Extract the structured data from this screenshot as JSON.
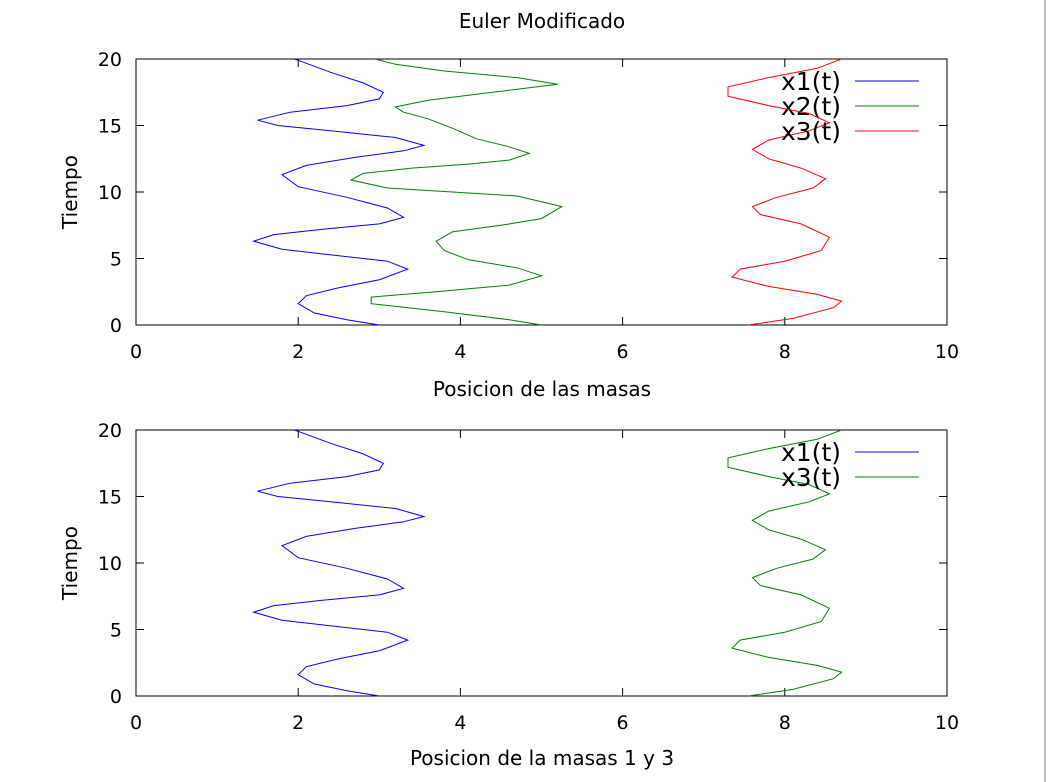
{
  "chart_data": [
    {
      "type": "line",
      "title": "Euler Modificado",
      "xlabel": "Posicion de las masas",
      "ylabel": "Tiempo",
      "xlim": [
        0,
        10
      ],
      "ylim": [
        0,
        20
      ],
      "xticks": [
        "0",
        "2",
        "4",
        "6",
        "8",
        "10"
      ],
      "yticks": [
        "0",
        "5",
        "10",
        "15",
        "20"
      ],
      "legend_position": "top-right",
      "series": [
        {
          "name": "x1(t)",
          "color": "#0000ff",
          "points": [
            [
              3.0,
              0
            ],
            [
              2.6,
              0.4
            ],
            [
              2.2,
              0.9
            ],
            [
              2.0,
              1.6
            ],
            [
              2.1,
              2.2
            ],
            [
              2.5,
              2.8
            ],
            [
              3.0,
              3.4
            ],
            [
              3.35,
              4.2
            ],
            [
              3.1,
              4.8
            ],
            [
              2.5,
              5.2
            ],
            [
              1.8,
              5.7
            ],
            [
              1.45,
              6.3
            ],
            [
              1.7,
              6.8
            ],
            [
              2.3,
              7.2
            ],
            [
              3.0,
              7.6
            ],
            [
              3.3,
              8.1
            ],
            [
              3.1,
              8.8
            ],
            [
              2.6,
              9.6
            ],
            [
              2.0,
              10.4
            ],
            [
              1.8,
              11.3
            ],
            [
              2.1,
              12.0
            ],
            [
              2.7,
              12.6
            ],
            [
              3.3,
              13.1
            ],
            [
              3.55,
              13.5
            ],
            [
              3.2,
              14.1
            ],
            [
              2.4,
              14.6
            ],
            [
              1.75,
              15.0
            ],
            [
              1.5,
              15.4
            ],
            [
              1.9,
              16.0
            ],
            [
              2.6,
              16.5
            ],
            [
              3.0,
              17.0
            ],
            [
              3.05,
              17.5
            ],
            [
              2.8,
              18.2
            ],
            [
              2.4,
              19.0
            ],
            [
              2.0,
              19.9
            ],
            [
              1.95,
              20
            ]
          ]
        },
        {
          "name": "x2(t)",
          "color": "#008000",
          "points": [
            [
              5.0,
              0
            ],
            [
              4.6,
              0.4
            ],
            [
              3.8,
              1.0
            ],
            [
              2.9,
              1.6
            ],
            [
              2.9,
              2.1
            ],
            [
              3.7,
              2.5
            ],
            [
              4.6,
              3.0
            ],
            [
              5.0,
              3.7
            ],
            [
              4.7,
              4.3
            ],
            [
              4.1,
              4.9
            ],
            [
              3.8,
              5.6
            ],
            [
              3.7,
              6.3
            ],
            [
              3.9,
              7.0
            ],
            [
              4.5,
              7.5
            ],
            [
              5.0,
              8.0
            ],
            [
              5.25,
              8.9
            ],
            [
              4.7,
              9.7
            ],
            [
              3.9,
              10.0
            ],
            [
              3.1,
              10.3
            ],
            [
              2.65,
              10.9
            ],
            [
              2.8,
              11.4
            ],
            [
              3.4,
              11.8
            ],
            [
              4.1,
              12.1
            ],
            [
              4.6,
              12.4
            ],
            [
              4.85,
              12.9
            ],
            [
              4.6,
              13.4
            ],
            [
              4.2,
              14.0
            ],
            [
              3.9,
              14.8
            ],
            [
              3.6,
              15.5
            ],
            [
              3.3,
              16.0
            ],
            [
              3.2,
              16.4
            ],
            [
              3.6,
              16.9
            ],
            [
              4.4,
              17.5
            ],
            [
              5.2,
              18.1
            ],
            [
              4.7,
              18.6
            ],
            [
              3.8,
              19.1
            ],
            [
              3.2,
              19.6
            ],
            [
              2.95,
              20
            ]
          ]
        },
        {
          "name": "x3(t)",
          "color": "#ff0000",
          "points": [
            [
              7.55,
              0
            ],
            [
              8.1,
              0.5
            ],
            [
              8.6,
              1.3
            ],
            [
              8.7,
              1.8
            ],
            [
              8.4,
              2.3
            ],
            [
              7.8,
              2.9
            ],
            [
              7.35,
              3.6
            ],
            [
              7.45,
              4.2
            ],
            [
              8.0,
              4.8
            ],
            [
              8.45,
              5.6
            ],
            [
              8.55,
              6.6
            ],
            [
              8.2,
              7.6
            ],
            [
              7.7,
              8.3
            ],
            [
              7.6,
              8.9
            ],
            [
              7.9,
              9.6
            ],
            [
              8.35,
              10.3
            ],
            [
              8.5,
              11.0
            ],
            [
              8.2,
              11.8
            ],
            [
              7.8,
              12.5
            ],
            [
              7.6,
              13.2
            ],
            [
              7.8,
              13.9
            ],
            [
              8.3,
              14.6
            ],
            [
              8.55,
              15.2
            ],
            [
              8.3,
              15.9
            ],
            [
              7.8,
              16.5
            ],
            [
              7.3,
              17.2
            ],
            [
              7.3,
              17.9
            ],
            [
              7.8,
              18.6
            ],
            [
              8.4,
              19.3
            ],
            [
              8.7,
              20
            ]
          ]
        }
      ]
    },
    {
      "type": "line",
      "title": "",
      "xlabel": "Posicion de la masas 1 y 3",
      "ylabel": "Tiempo",
      "xlim": [
        0,
        10
      ],
      "ylim": [
        0,
        20
      ],
      "xticks": [
        "0",
        "2",
        "4",
        "6",
        "8",
        "10"
      ],
      "yticks": [
        "0",
        "5",
        "10",
        "15",
        "20"
      ],
      "legend_position": "top-right",
      "series": [
        {
          "name": "x1(t)",
          "color": "#0000ff",
          "points": [
            [
              3.0,
              0
            ],
            [
              2.6,
              0.4
            ],
            [
              2.2,
              0.9
            ],
            [
              2.0,
              1.6
            ],
            [
              2.1,
              2.2
            ],
            [
              2.5,
              2.8
            ],
            [
              3.0,
              3.4
            ],
            [
              3.35,
              4.2
            ],
            [
              3.1,
              4.8
            ],
            [
              2.5,
              5.2
            ],
            [
              1.8,
              5.7
            ],
            [
              1.45,
              6.3
            ],
            [
              1.7,
              6.8
            ],
            [
              2.3,
              7.2
            ],
            [
              3.0,
              7.6
            ],
            [
              3.3,
              8.1
            ],
            [
              3.1,
              8.8
            ],
            [
              2.6,
              9.6
            ],
            [
              2.0,
              10.4
            ],
            [
              1.8,
              11.3
            ],
            [
              2.1,
              12.0
            ],
            [
              2.7,
              12.6
            ],
            [
              3.3,
              13.1
            ],
            [
              3.55,
              13.5
            ],
            [
              3.2,
              14.1
            ],
            [
              2.4,
              14.6
            ],
            [
              1.75,
              15.0
            ],
            [
              1.5,
              15.4
            ],
            [
              1.9,
              16.0
            ],
            [
              2.6,
              16.5
            ],
            [
              3.0,
              17.0
            ],
            [
              3.05,
              17.5
            ],
            [
              2.8,
              18.2
            ],
            [
              2.4,
              19.0
            ],
            [
              2.0,
              19.9
            ],
            [
              1.95,
              20
            ]
          ]
        },
        {
          "name": "x3(t)",
          "color": "#008000",
          "points": [
            [
              7.55,
              0
            ],
            [
              8.1,
              0.5
            ],
            [
              8.6,
              1.3
            ],
            [
              8.7,
              1.8
            ],
            [
              8.4,
              2.3
            ],
            [
              7.8,
              2.9
            ],
            [
              7.35,
              3.6
            ],
            [
              7.45,
              4.2
            ],
            [
              8.0,
              4.8
            ],
            [
              8.45,
              5.6
            ],
            [
              8.55,
              6.6
            ],
            [
              8.2,
              7.6
            ],
            [
              7.7,
              8.3
            ],
            [
              7.6,
              8.9
            ],
            [
              7.9,
              9.6
            ],
            [
              8.35,
              10.3
            ],
            [
              8.5,
              11.0
            ],
            [
              8.2,
              11.8
            ],
            [
              7.8,
              12.5
            ],
            [
              7.6,
              13.2
            ],
            [
              7.8,
              13.9
            ],
            [
              8.3,
              14.6
            ],
            [
              8.55,
              15.2
            ],
            [
              8.3,
              15.9
            ],
            [
              7.8,
              16.5
            ],
            [
              7.3,
              17.2
            ],
            [
              7.3,
              17.9
            ],
            [
              7.8,
              18.6
            ],
            [
              8.4,
              19.3
            ],
            [
              8.7,
              20
            ]
          ]
        }
      ]
    }
  ]
}
